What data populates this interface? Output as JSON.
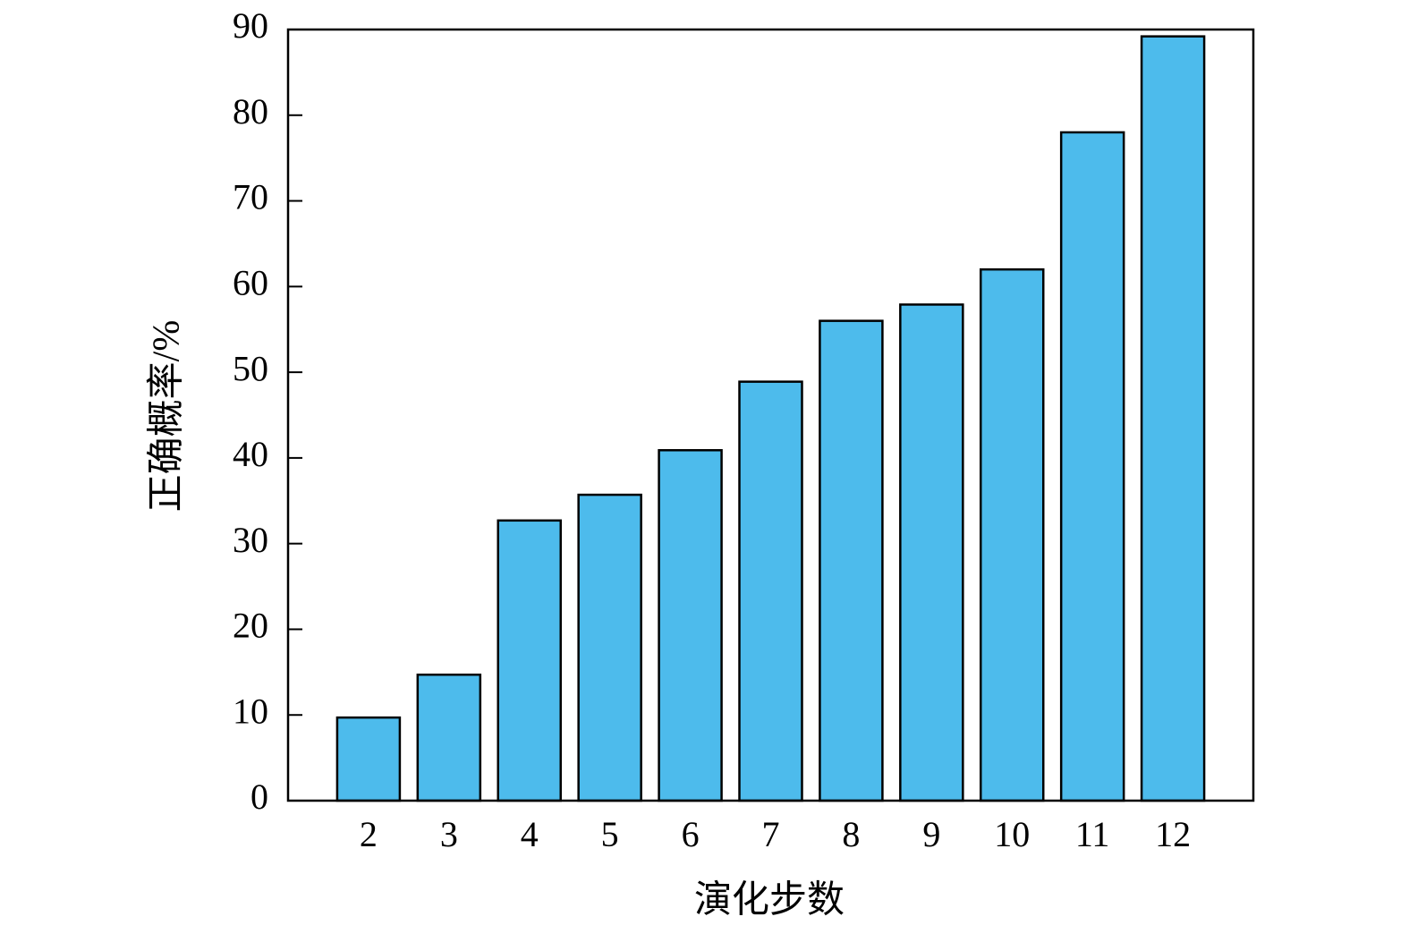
{
  "chart_data": {
    "type": "bar",
    "x_label": "演化步数",
    "y_label": "正确概率/%",
    "categories": [
      "2",
      "3",
      "4",
      "5",
      "6",
      "7",
      "8",
      "9",
      "10",
      "11",
      "12"
    ],
    "values": [
      9.7,
      14.7,
      32.7,
      35.7,
      40.9,
      48.9,
      56,
      57.9,
      62,
      78,
      89.2
    ],
    "color": "#4dbbec",
    "ylim": [
      0,
      90
    ],
    "yticks": [
      0,
      10,
      20,
      30,
      40,
      50,
      60,
      70,
      80,
      90
    ]
  }
}
